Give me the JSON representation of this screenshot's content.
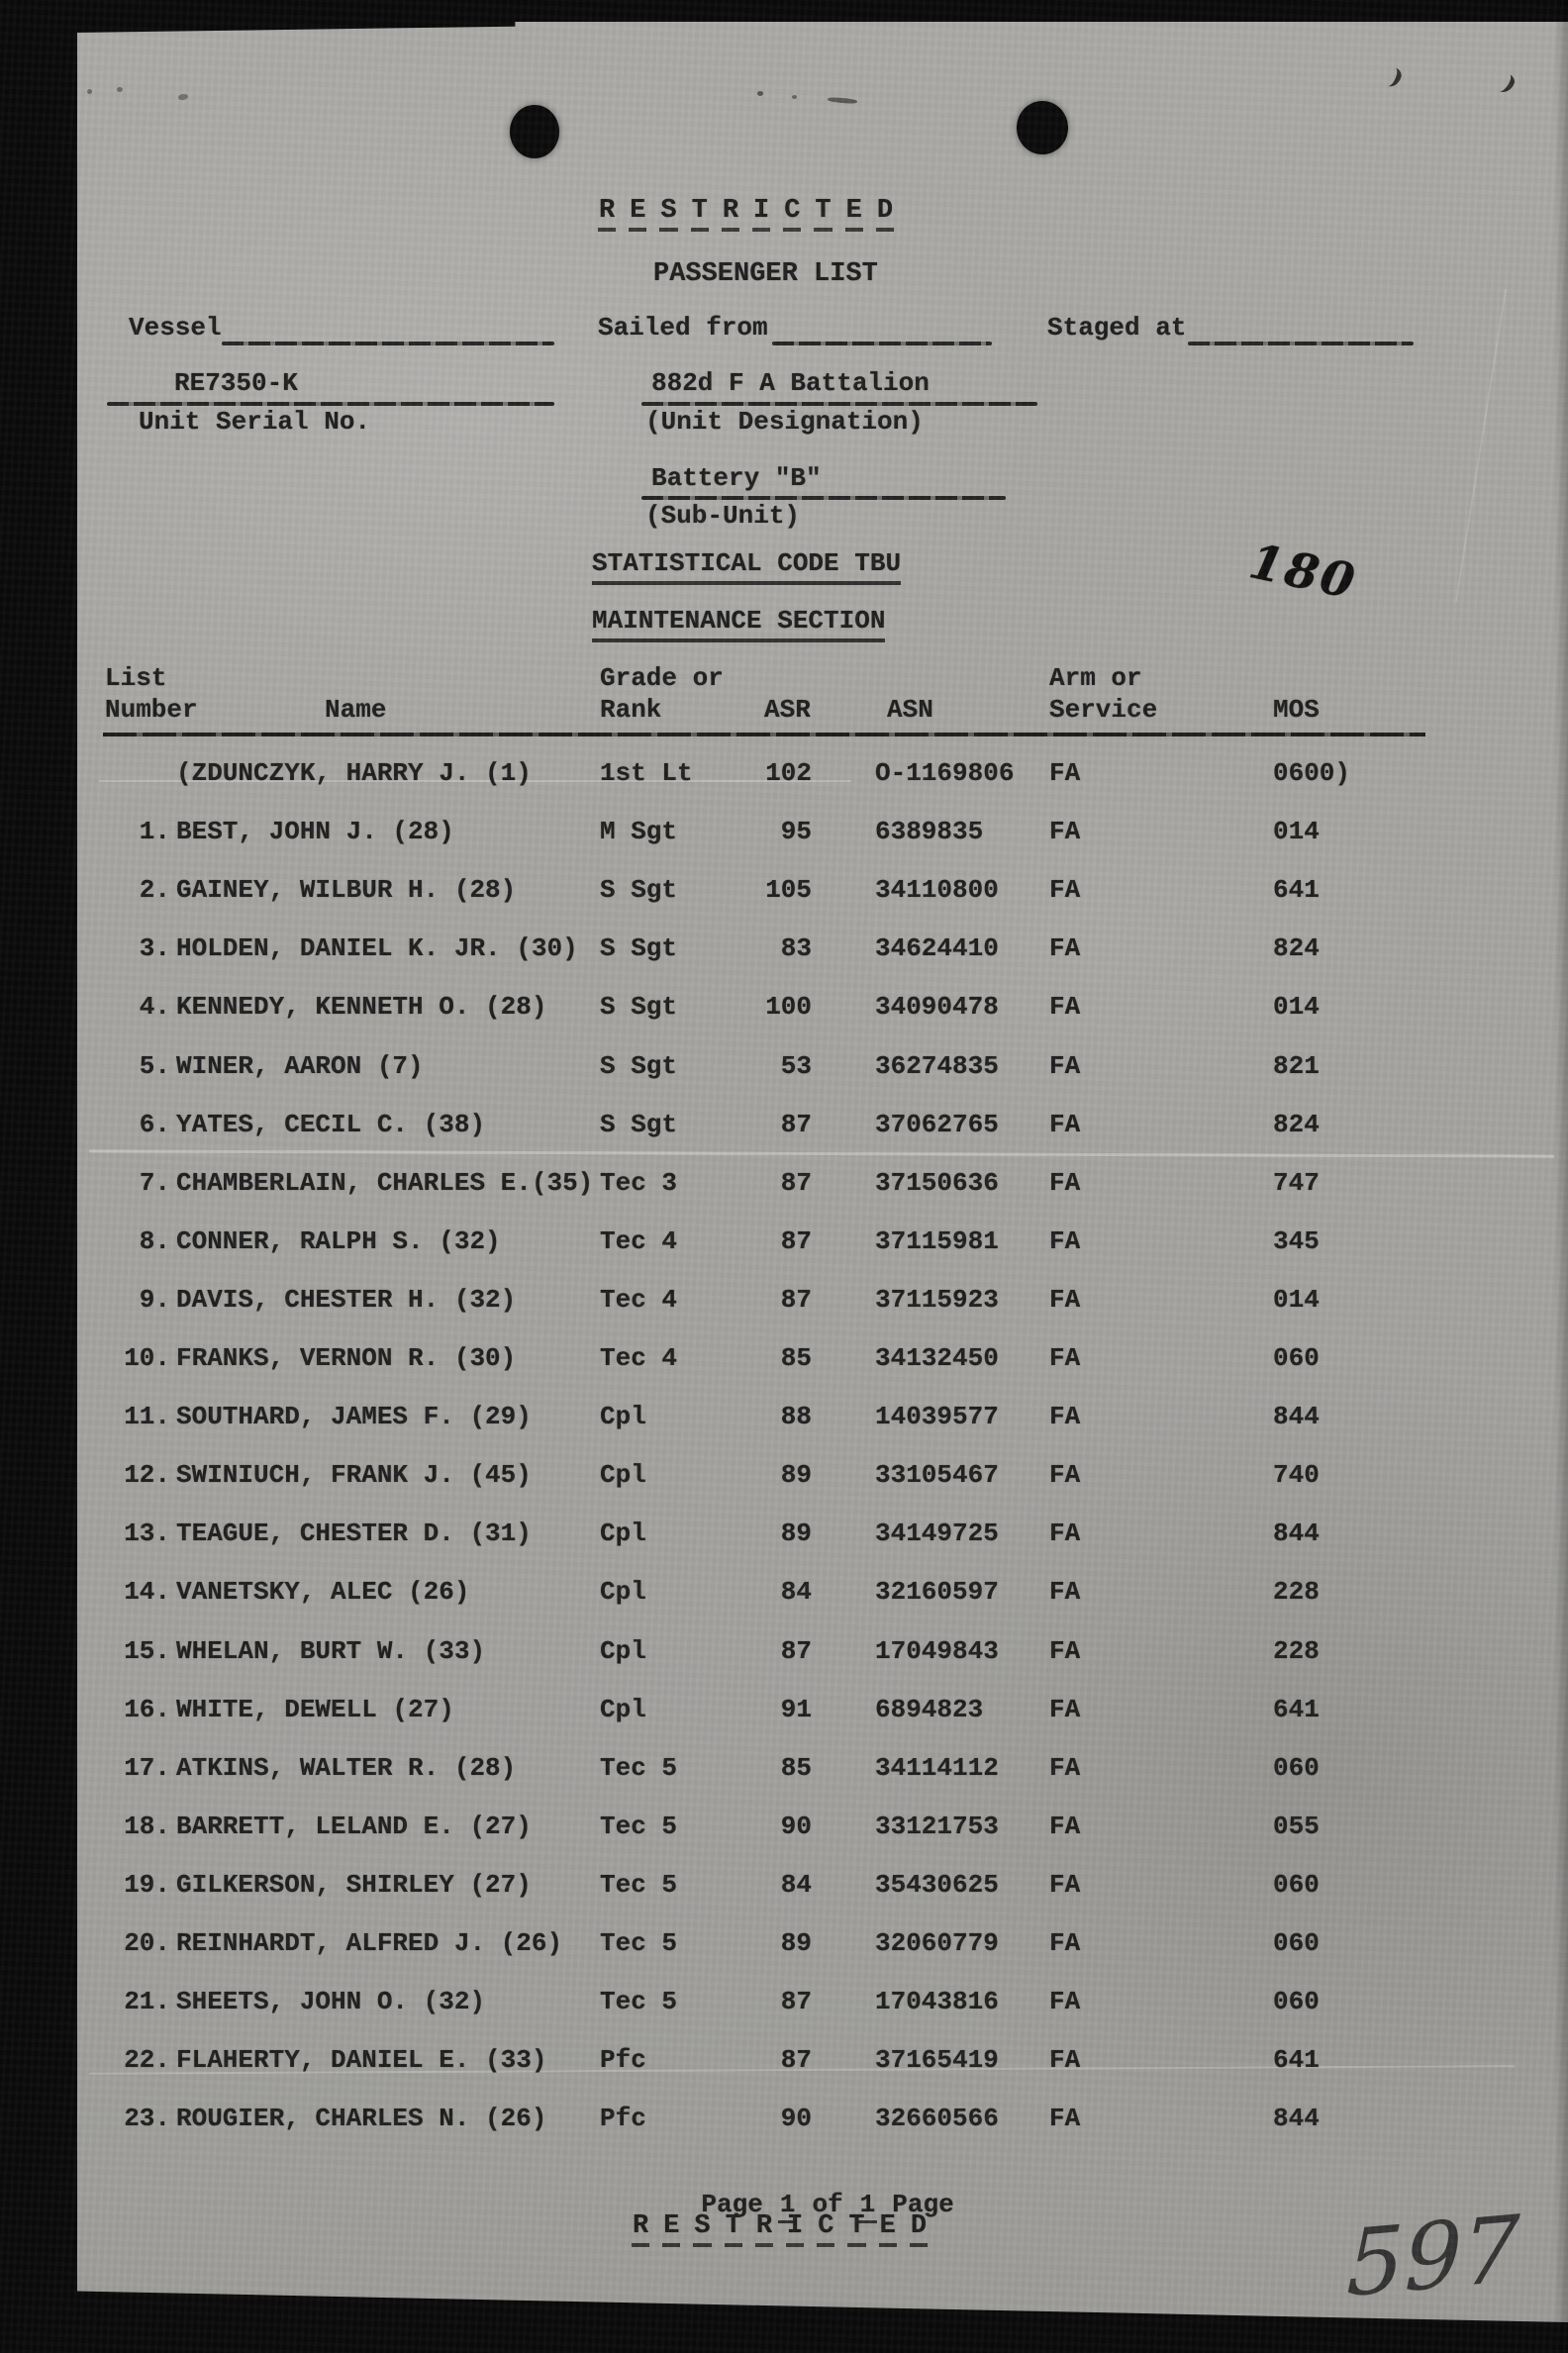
{
  "colors": {
    "paper": "#a7a6a3",
    "ink": "#1f1f1f"
  },
  "classification": {
    "header": "RESTRICTED",
    "footer": "RESTRICTED"
  },
  "title": "PASSENGER LIST",
  "form": {
    "vessel_label": "Vessel",
    "sailed_from_label": "Sailed from",
    "staged_at_label": "Staged at",
    "unit_serial_value": "RE7350-K",
    "unit_serial_label": "Unit Serial No.",
    "unit_designation_value": "882d F A Battalion",
    "unit_designation_label": "(Unit Designation)",
    "sub_unit_value": "Battery \"B\"",
    "sub_unit_label": "(Sub-Unit)"
  },
  "section": {
    "statistical_code": "STATISTICAL CODE TBU",
    "maintenance": "MAINTENANCE SECTION"
  },
  "stamps": {
    "page_stamp": "180",
    "doc_number": "597"
  },
  "table": {
    "headers": {
      "col1_line1": "List",
      "col1_line2": "Number",
      "col2": "Name",
      "col3_line1": "Grade or",
      "col3_line2": "Rank",
      "col4": "ASR",
      "col5": "ASN",
      "col6_line1": "Arm or",
      "col6_line2": "Service",
      "col7": "MOS"
    },
    "rows": [
      {
        "num": "",
        "name": "(ZDUNCZYK, HARRY J. (1)",
        "grade": "1st Lt",
        "asr": "102",
        "asn": "O-1169806",
        "arm": "FA",
        "mos": "0600)"
      },
      {
        "num": "1.",
        "name": "BEST, JOHN J. (28)",
        "grade": "M Sgt",
        "asr": "95",
        "asn": "6389835",
        "arm": "FA",
        "mos": "014"
      },
      {
        "num": "2.",
        "name": "GAINEY, WILBUR H. (28)",
        "grade": "S Sgt",
        "asr": "105",
        "asn": "34110800",
        "arm": "FA",
        "mos": "641"
      },
      {
        "num": "3.",
        "name": "HOLDEN, DANIEL K. JR. (30)",
        "grade": "S Sgt",
        "asr": "83",
        "asn": "34624410",
        "arm": "FA",
        "mos": "824"
      },
      {
        "num": "4.",
        "name": "KENNEDY, KENNETH O. (28)",
        "grade": "S Sgt",
        "asr": "100",
        "asn": "34090478",
        "arm": "FA",
        "mos": "014"
      },
      {
        "num": "5.",
        "name": "WINER, AARON (7)",
        "grade": "S Sgt",
        "asr": "53",
        "asn": "36274835",
        "arm": "FA",
        "mos": "821"
      },
      {
        "num": "6.",
        "name": "YATES, CECIL C. (38)",
        "grade": "S Sgt",
        "asr": "87",
        "asn": "37062765",
        "arm": "FA",
        "mos": "824"
      },
      {
        "num": "7.",
        "name": "CHAMBERLAIN, CHARLES E.(35)",
        "grade": "Tec 3",
        "asr": "87",
        "asn": "37150636",
        "arm": "FA",
        "mos": "747"
      },
      {
        "num": "8.",
        "name": "CONNER, RALPH S. (32)",
        "grade": "Tec 4",
        "asr": "87",
        "asn": "37115981",
        "arm": "FA",
        "mos": "345"
      },
      {
        "num": "9.",
        "name": "DAVIS, CHESTER H. (32)",
        "grade": "Tec 4",
        "asr": "87",
        "asn": "37115923",
        "arm": "FA",
        "mos": "014"
      },
      {
        "num": "10.",
        "name": "FRANKS, VERNON R. (30)",
        "grade": "Tec 4",
        "asr": "85",
        "asn": "34132450",
        "arm": "FA",
        "mos": "060"
      },
      {
        "num": "11.",
        "name": "SOUTHARD, JAMES F. (29)",
        "grade": "Cpl",
        "asr": "88",
        "asn": "14039577",
        "arm": "FA",
        "mos": "844"
      },
      {
        "num": "12.",
        "name": "SWINIUCH, FRANK J. (45)",
        "grade": "Cpl",
        "asr": "89",
        "asn": "33105467",
        "arm": "FA",
        "mos": "740"
      },
      {
        "num": "13.",
        "name": "TEAGUE, CHESTER D. (31)",
        "grade": "Cpl",
        "asr": "89",
        "asn": "34149725",
        "arm": "FA",
        "mos": "844"
      },
      {
        "num": "14.",
        "name": "VANETSKY, ALEC (26)",
        "grade": "Cpl",
        "asr": "84",
        "asn": "32160597",
        "arm": "FA",
        "mos": "228"
      },
      {
        "num": "15.",
        "name": "WHELAN, BURT W. (33)",
        "grade": "Cpl",
        "asr": "87",
        "asn": "17049843",
        "arm": "FA",
        "mos": "228"
      },
      {
        "num": "16.",
        "name": "WHITE, DEWELL (27)",
        "grade": "Cpl",
        "asr": "91",
        "asn": "6894823",
        "arm": "FA",
        "mos": "641"
      },
      {
        "num": "17.",
        "name": "ATKINS, WALTER R. (28)",
        "grade": "Tec 5",
        "asr": "85",
        "asn": "34114112",
        "arm": "FA",
        "mos": "060"
      },
      {
        "num": "18.",
        "name": "BARRETT, LELAND E. (27)",
        "grade": "Tec 5",
        "asr": "90",
        "asn": "33121753",
        "arm": "FA",
        "mos": "055"
      },
      {
        "num": "19.",
        "name": "GILKERSON, SHIRLEY (27)",
        "grade": "Tec 5",
        "asr": "84",
        "asn": "35430625",
        "arm": "FA",
        "mos": "060"
      },
      {
        "num": "20.",
        "name": "REINHARDT, ALFRED J. (26)",
        "grade": "Tec 5",
        "asr": "89",
        "asn": "32060779",
        "arm": "FA",
        "mos": "060"
      },
      {
        "num": "21.",
        "name": "SHEETS, JOHN O. (32)",
        "grade": "Tec 5",
        "asr": "87",
        "asn": "17043816",
        "arm": "FA",
        "mos": "060"
      },
      {
        "num": "22.",
        "name": "FLAHERTY, DANIEL E. (33)",
        "grade": "Pfc",
        "asr": "87",
        "asn": "37165419",
        "arm": "FA",
        "mos": "641"
      },
      {
        "num": "23.",
        "name": "ROUGIER, CHARLES N. (26)",
        "grade": "Pfc",
        "asr": "90",
        "asn": "32660566",
        "arm": "FA",
        "mos": "844"
      }
    ]
  },
  "footer": {
    "page_pre": "Page",
    "page_n1": "1",
    "page_mid": "of",
    "page_n2": "1",
    "page_post": "Page"
  }
}
